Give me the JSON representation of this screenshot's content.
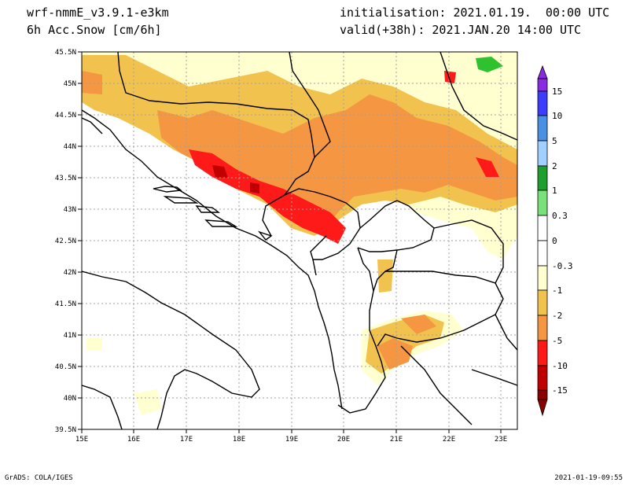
{
  "header": {
    "model": "wrf-nmmE_v3.9.1-e3km",
    "variable": "6h Acc.Snow [cm/6h]",
    "initialisation": "initialisation: 2021.01.19.  00:00 UTC",
    "valid": "valid(+38h): 2021.JAN.20 14:00 UTC"
  },
  "footer": {
    "left": "GrADS: COLA/IGES",
    "right": "2021-01-19-09:55"
  },
  "axes": {
    "lon_labels": [
      "15E",
      "16E",
      "17E",
      "18E",
      "19E",
      "20E",
      "21E",
      "22E",
      "23E"
    ],
    "lat_labels": [
      "45.5N",
      "45N",
      "44.5N",
      "44N",
      "43.5N",
      "43N",
      "42.5N",
      "42N",
      "41.5N",
      "41N",
      "40.5N",
      "40N",
      "39.5N"
    ]
  },
  "colorbar": {
    "labels": [
      "15",
      "10",
      "5",
      "2",
      "1",
      "0.3",
      "0",
      "-0.3",
      "-1",
      "-2",
      "-5",
      "-10",
      "-15"
    ],
    "colors": [
      "#8a2be2",
      "#3c3cff",
      "#4a90e2",
      "#a0d0ff",
      "#1e9e2e",
      "#2ec22e",
      "#7ae07a",
      "#ffffff",
      "#ffffd0",
      "#f2c24e",
      "#f59642",
      "#ff1a1a",
      "#c00000",
      "#8b0000"
    ]
  }
}
